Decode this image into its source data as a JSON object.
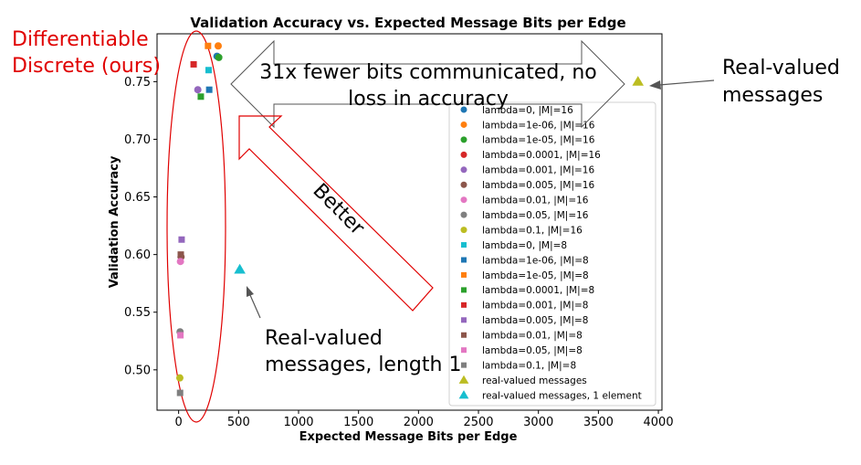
{
  "chart_data": {
    "type": "scatter",
    "title": "Validation Accuracy vs. Expected Message Bits per Edge",
    "xlabel": "Expected Message Bits per Edge",
    "ylabel": "Validation Accuracy",
    "xlim": [
      -180,
      4030
    ],
    "ylim": [
      0.465,
      0.7915
    ],
    "x_ticks": [
      0,
      500,
      1000,
      1500,
      2000,
      2500,
      3000,
      3500,
      4000
    ],
    "x_tick_labels": [
      "0",
      "500",
      "1000",
      "1500",
      "2000",
      "2500",
      "3000",
      "3500",
      "4000"
    ],
    "y_ticks": [
      0.5,
      0.55,
      0.6,
      0.65,
      0.7,
      0.75
    ],
    "y_tick_labels": [
      "0.50",
      "0.55",
      "0.60",
      "0.65",
      "0.70",
      "0.75"
    ],
    "grid": false,
    "legend_position": "lower-right",
    "series": [
      {
        "name": "lambda=0, |M|=16",
        "marker": "circle",
        "color": "#1f77b4",
        "points": [
          [
            320,
            0.772
          ]
        ]
      },
      {
        "name": "lambda=1e-06, |M|=16",
        "marker": "circle",
        "color": "#ff7f0e",
        "points": [
          [
            330,
            0.781
          ]
        ]
      },
      {
        "name": "lambda=1e-05, |M|=16",
        "marker": "circle",
        "color": "#2ca02c",
        "points": [
          [
            335,
            0.771
          ]
        ]
      },
      {
        "name": "lambda=0.0001, |M|=16",
        "marker": "circle",
        "color": "#d62728",
        "points": []
      },
      {
        "name": "lambda=0.001, |M|=16",
        "marker": "circle",
        "color": "#9467bd",
        "points": [
          [
            160,
            0.743
          ]
        ]
      },
      {
        "name": "lambda=0.005, |M|=16",
        "marker": "circle",
        "color": "#8c564b",
        "points": [
          [
            20,
            0.598
          ]
        ]
      },
      {
        "name": "lambda=0.01, |M|=16",
        "marker": "circle",
        "color": "#e377c2",
        "points": [
          [
            15,
            0.594
          ]
        ]
      },
      {
        "name": "lambda=0.05, |M|=16",
        "marker": "circle",
        "color": "#7f7f7f",
        "points": [
          [
            12,
            0.533
          ]
        ]
      },
      {
        "name": "lambda=0.1, |M|=16",
        "marker": "circle",
        "color": "#bcbd22",
        "points": [
          [
            10,
            0.493
          ]
        ]
      },
      {
        "name": "lambda=0, |M|=8",
        "marker": "square",
        "color": "#17becf",
        "points": [
          [
            250,
            0.76
          ]
        ]
      },
      {
        "name": "lambda=1e-06, |M|=8",
        "marker": "square",
        "color": "#1f77b4",
        "points": [
          [
            255,
            0.743
          ]
        ]
      },
      {
        "name": "lambda=1e-05, |M|=8",
        "marker": "square",
        "color": "#ff7f0e",
        "points": [
          [
            245,
            0.781
          ]
        ]
      },
      {
        "name": "lambda=0.0001, |M|=8",
        "marker": "square",
        "color": "#2ca02c",
        "points": [
          [
            185,
            0.737
          ]
        ]
      },
      {
        "name": "lambda=0.001, |M|=8",
        "marker": "square",
        "color": "#d62728",
        "points": [
          [
            125,
            0.765
          ]
        ]
      },
      {
        "name": "lambda=0.005, |M|=8",
        "marker": "square",
        "color": "#9467bd",
        "points": [
          [
            25,
            0.613
          ]
        ]
      },
      {
        "name": "lambda=0.01, |M|=8",
        "marker": "square",
        "color": "#8c564b",
        "points": [
          [
            18,
            0.6
          ]
        ]
      },
      {
        "name": "lambda=0.05, |M|=8",
        "marker": "square",
        "color": "#e377c2",
        "points": [
          [
            15,
            0.53
          ]
        ]
      },
      {
        "name": "lambda=0.1, |M|=8",
        "marker": "square",
        "color": "#7f7f7f",
        "points": [
          [
            12,
            0.48
          ]
        ]
      },
      {
        "name": "real-valued messages",
        "marker": "triangle",
        "color": "#bcbd22",
        "points": [
          [
            3830,
            0.75
          ]
        ]
      },
      {
        "name": "real-valued messages, 1 element",
        "marker": "triangle",
        "color": "#17becf",
        "points": [
          [
            510,
            0.587
          ]
        ]
      }
    ],
    "annotations": {
      "discrete_line1": "Differentiable",
      "discrete_line2": "Discrete (ours)",
      "fewer_bits_line1": "31x fewer bits communicated, no",
      "fewer_bits_line2": "loss in accuracy",
      "better": "Better",
      "real_valued_line1": "Real-valued",
      "real_valued_line2": "messages",
      "real_len1_line1": "Real-valued",
      "real_len1_line2": "messages, length 1"
    }
  }
}
